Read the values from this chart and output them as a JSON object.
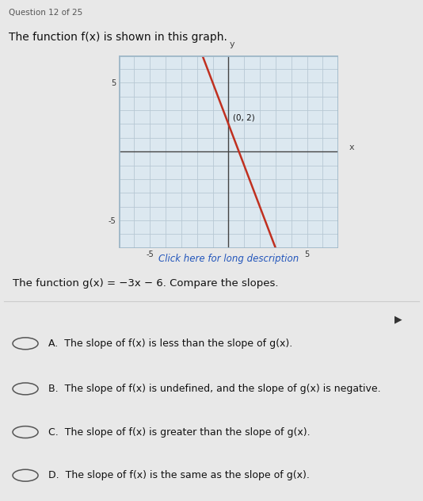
{
  "title_text": "The function f(x) is shown in this graph.",
  "question_header": "Question 12 of 25",
  "graph_xlim": [
    -7,
    7
  ],
  "graph_ylim": [
    -7,
    7
  ],
  "fx_slope": -3,
  "fx_intercept": 2,
  "line_color": "#c03020",
  "line_width": 1.8,
  "point_label": "(0, 2)",
  "click_text": "Click here for long description",
  "gx_text": "The function g(x) = −3x − 6. Compare the slopes.",
  "choices": [
    "A.  The slope of f(x) is less than the slope of g(x).",
    "B.  The slope of f(x) is undefined, and the slope of g(x) is negative.",
    "C.  The slope of f(x) is greater than the slope of g(x).",
    "D.  The slope of f(x) is the same as the slope of g(x)."
  ],
  "bg_color": "#e8e8e8",
  "graph_bg": "#dce8f0",
  "grid_color": "#b8c8d4",
  "tick_label_color": "#333333",
  "text_color": "#111111",
  "choice_text_color": "#111111",
  "graph_border_color": "#a0b8c8",
  "link_color": "#2255bb",
  "header_color": "#555555"
}
